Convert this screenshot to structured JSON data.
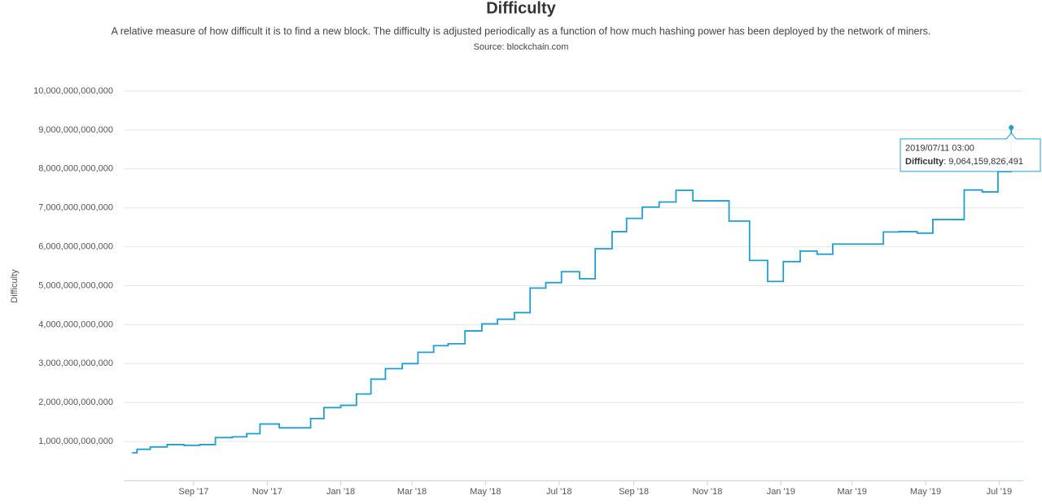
{
  "chart_data": {
    "type": "line",
    "step": "after",
    "title": "Difficulty",
    "subtitle": "A relative measure of how difficult it is to find a new block. The difficulty is adjusted periodically as a function of how much hashing power has been deployed by the network of miners.",
    "source": "Source: blockchain.com",
    "y_label": "Difficulty",
    "x": [
      "2017/07/12",
      "2017/07/16",
      "2017/07/27",
      "2017/08/10",
      "2017/08/24",
      "2017/09/06",
      "2017/09/19",
      "2017/10/03",
      "2017/10/15",
      "2017/10/26",
      "2017/11/11",
      "2017/11/25",
      "2017/12/07",
      "2017/12/18",
      "2018/01/01",
      "2018/01/14",
      "2018/01/26",
      "2018/02/07",
      "2018/02/21",
      "2018/03/06",
      "2018/03/19",
      "2018/03/31",
      "2018/04/14",
      "2018/04/28",
      "2018/05/11",
      "2018/05/25",
      "2018/06/07",
      "2018/06/20",
      "2018/07/03",
      "2018/07/18",
      "2018/07/31",
      "2018/08/14",
      "2018/08/26",
      "2018/09/08",
      "2018/09/22",
      "2018/10/06",
      "2018/10/20",
      "2018/11/19",
      "2018/12/06",
      "2018/12/21",
      "2019/01/03",
      "2019/01/17",
      "2019/01/31",
      "2019/02/13",
      "2019/03/27",
      "2019/04/09",
      "2019/04/24",
      "2019/05/07",
      "2019/06/02",
      "2019/06/17",
      "2019/06/30",
      "2019/07/11"
    ],
    "series": [
      {
        "name": "Difficulty",
        "color": "#1f9fcf",
        "values": [
          710000000000,
          800000000000,
          860000000000,
          920000000000,
          900000000000,
          920000000000,
          1100000000000,
          1120000000000,
          1200000000000,
          1450000000000,
          1350000000000,
          1350000000000,
          1590000000000,
          1870000000000,
          1930000000000,
          2220000000000,
          2600000000000,
          2870000000000,
          3000000000000,
          3290000000000,
          3460000000000,
          3510000000000,
          3840000000000,
          4020000000000,
          4140000000000,
          4310000000000,
          4940000000000,
          5080000000000,
          5360000000000,
          5180000000000,
          5950000000000,
          6390000000000,
          6730000000000,
          7020000000000,
          7150000000000,
          7450000000000,
          7180000000000,
          6660000000000,
          5650000000000,
          5110000000000,
          5620000000000,
          5890000000000,
          5810000000000,
          6070000000000,
          6380000000000,
          6390000000000,
          6350000000000,
          6700000000000,
          7460000000000,
          7410000000000,
          7930000000000,
          9064159826491
        ]
      }
    ],
    "xlim": [
      "2017/07/05",
      "2019/07/21"
    ],
    "xticks": [
      {
        "value": "2017/09/01",
        "label": "Sep '17"
      },
      {
        "value": "2017/11/01",
        "label": "Nov '17"
      },
      {
        "value": "2018/01/01",
        "label": "Jan '18"
      },
      {
        "value": "2018/03/01",
        "label": "Mar '18"
      },
      {
        "value": "2018/05/01",
        "label": "May '18"
      },
      {
        "value": "2018/07/01",
        "label": "Jul '18"
      },
      {
        "value": "2018/09/01",
        "label": "Sep '18"
      },
      {
        "value": "2018/11/01",
        "label": "Nov '18"
      },
      {
        "value": "2019/01/01",
        "label": "Jan '19"
      },
      {
        "value": "2019/03/01",
        "label": "Mar '19"
      },
      {
        "value": "2019/05/01",
        "label": "May '19"
      },
      {
        "value": "2019/07/01",
        "label": "Jul '19"
      }
    ],
    "ylim": [
      0,
      10000000000000
    ],
    "yticks": [
      {
        "value": 1000000000000,
        "label": "1,000,000,000,000"
      },
      {
        "value": 2000000000000,
        "label": "2,000,000,000,000"
      },
      {
        "value": 3000000000000,
        "label": "3,000,000,000,000"
      },
      {
        "value": 4000000000000,
        "label": "4,000,000,000,000"
      },
      {
        "value": 5000000000000,
        "label": "5,000,000,000,000"
      },
      {
        "value": 6000000000000,
        "label": "6,000,000,000,000"
      },
      {
        "value": 7000000000000,
        "label": "7,000,000,000,000"
      },
      {
        "value": 8000000000000,
        "label": "8,000,000,000,000"
      },
      {
        "value": 9000000000000,
        "label": "9,000,000,000,000"
      },
      {
        "value": 10000000000000,
        "label": "10,000,000,000,000"
      }
    ],
    "grid": true,
    "tooltip": {
      "x_label": "2019/07/11 03:00",
      "series_label": "Difficulty",
      "value_label": "9,064,159,826,491"
    }
  }
}
